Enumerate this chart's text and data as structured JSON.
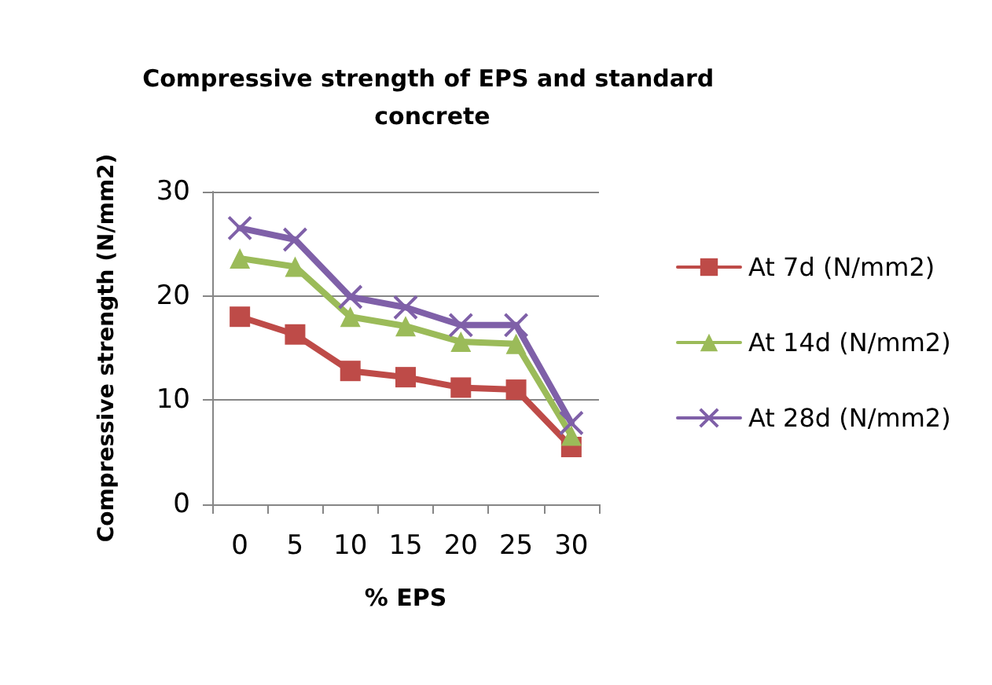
{
  "chart_data": {
    "type": "line",
    "title": "Compressive strength of EPS and standard concrete",
    "xlabel": "% EPS",
    "ylabel": "Compressive strength (N/mm2)",
    "categories": [
      "0",
      "5",
      "10",
      "15",
      "20",
      "25",
      "30"
    ],
    "series": [
      {
        "name": "At 7d (N/mm2)",
        "color": "#be4b48",
        "marker": "square",
        "values": [
          18.0,
          16.3,
          12.8,
          12.2,
          11.2,
          11.0,
          5.5
        ]
      },
      {
        "name": "At 14d (N/mm2)",
        "color": "#9bbb59",
        "marker": "triangle",
        "values": [
          23.6,
          22.8,
          18.0,
          17.1,
          15.6,
          15.4,
          6.6
        ]
      },
      {
        "name": "At 28d (N/mm2)",
        "color": "#7f60a8",
        "marker": "cross",
        "values": [
          26.5,
          25.4,
          19.9,
          18.9,
          17.2,
          17.2,
          7.8
        ]
      }
    ],
    "ylim": [
      0,
      30
    ],
    "yticks": [
      0,
      10,
      20,
      30
    ],
    "grid": "y",
    "legend": "right"
  }
}
